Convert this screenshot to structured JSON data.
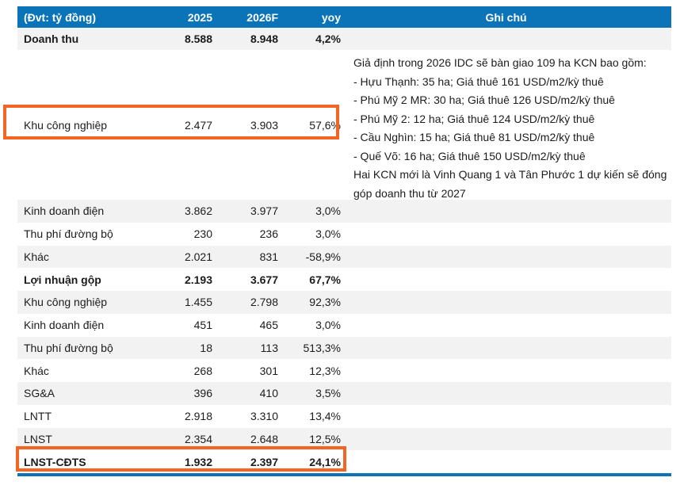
{
  "colors": {
    "header_blue": "#0B74B8",
    "bottom_line_blue": "#0B74B8",
    "highlight_orange": "#F26522",
    "stripe_gray": "#F2F2F2"
  },
  "table": {
    "header": {
      "unit": "(Đvt: tỷ đồng)",
      "y2025": "2025",
      "y2026f": "2026F",
      "yoy": "yoy",
      "note": "Ghi chú"
    },
    "rows": [
      {
        "label": "Doanh thu",
        "v2025": "8.588",
        "v2026f": "8.948",
        "yoy": "4,2%"
      },
      {
        "label": "Khu công nghiệp",
        "v2025": "2.477",
        "v2026f": "3.903",
        "yoy": "57,6%"
      },
      {
        "label": "Kinh doanh điện",
        "v2025": "3.862",
        "v2026f": "3.977",
        "yoy": "3,0%"
      },
      {
        "label": "Thu phí đường bộ",
        "v2025": "230",
        "v2026f": "236",
        "yoy": "3,0%"
      },
      {
        "label": "Khác",
        "v2025": "2.021",
        "v2026f": "831",
        "yoy": "-58,9%"
      },
      {
        "label": "Lợi nhuận gộp",
        "v2025": "2.193",
        "v2026f": "3.677",
        "yoy": "67,7%"
      },
      {
        "label": "Khu công nghiệp",
        "v2025": "1.455",
        "v2026f": "2.798",
        "yoy": "92,3%"
      },
      {
        "label": "Kinh doanh điện",
        "v2025": "451",
        "v2026f": "465",
        "yoy": "3,0%"
      },
      {
        "label": "Thu phí đường bộ",
        "v2025": "18",
        "v2026f": "113",
        "yoy": "513,3%"
      },
      {
        "label": "Khác",
        "v2025": "268",
        "v2026f": "301",
        "yoy": "12,3%"
      },
      {
        "label": "SG&A",
        "v2025": "396",
        "v2026f": "410",
        "yoy": "3,5%"
      },
      {
        "label": "LNTT",
        "v2025": "2.918",
        "v2026f": "3.310",
        "yoy": "13,4%"
      },
      {
        "label": "LNST",
        "v2025": "2.354",
        "v2026f": "2.648",
        "yoy": "12,5%"
      },
      {
        "label": "LNST-CĐTS",
        "v2025": "1.932",
        "v2026f": "2.397",
        "yoy": "24,1%"
      }
    ],
    "notes": [
      "Giả định trong 2026 IDC sẽ bàn giao 109 ha KCN bao gồm:",
      "- Hựu Thạnh: 35 ha; Giá thuê 161 USD/m2/kỳ thuê",
      "- Phú Mỹ 2 MR: 30 ha; Giá thuê 126 USD/m2/kỳ thuê",
      "- Phú Mỹ 2: 12 ha; Giá thuê 124 USD/m2/kỳ thuê",
      "- Cầu Nghìn: 15 ha; Giá thuê 81 USD/m2/kỳ thuê",
      "- Quế Võ: 16 ha; Giá thuê 150 USD/m2/kỳ thuê",
      "Hai KCN mới là Vinh Quang 1 và Tân Phước 1 dự kiến sẽ đóng góp doanh thu từ 2027"
    ]
  }
}
